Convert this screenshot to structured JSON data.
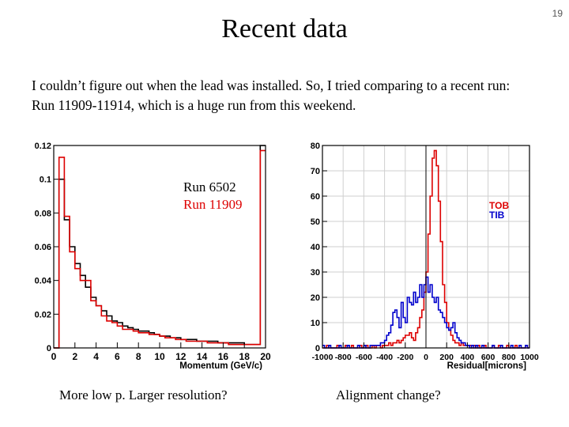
{
  "slide": {
    "title": "Recent data",
    "page_number": "19",
    "body_lines": [
      "I couldn’t figure out when the lead was installed. So, I tried comparing to a recent run:",
      "Run 11909-11914, which is a huge run from this weekend."
    ],
    "left_caption": "More low p.  Larger resolution?",
    "right_caption": "Alignment change?"
  },
  "chart_data": [
    {
      "type": "histogram",
      "title": "",
      "xlabel": "Momentum (GeV/c)",
      "ylabel": "",
      "xlim": [
        0,
        20
      ],
      "ylim": [
        0,
        0.12
      ],
      "x_ticks": [
        "0",
        "2",
        "4",
        "6",
        "8",
        "10",
        "12",
        "14",
        "16",
        "18",
        "20"
      ],
      "y_ticks": [
        "0",
        "0.02",
        "0.04",
        "0.06",
        "0.08",
        "0.1",
        "0.12"
      ],
      "bin_width": 0.5,
      "legend": [
        "Run 6502",
        "Run 11909"
      ],
      "series": [
        {
          "name": "Run 6502",
          "color": "#000000",
          "values": [
            0.0,
            0.1,
            0.076,
            0.06,
            0.05,
            0.043,
            0.036,
            0.03,
            0.025,
            0.022,
            0.019,
            0.016,
            0.015,
            0.013,
            0.012,
            0.011,
            0.01,
            0.01,
            0.009,
            0.008,
            0.007,
            0.007,
            0.006,
            0.006,
            0.005,
            0.005,
            0.005,
            0.004,
            0.004,
            0.004,
            0.004,
            0.003,
            0.003,
            0.003,
            0.003,
            0.003,
            0.002,
            0.002,
            0.002,
            0.12
          ]
        },
        {
          "name": "Run 11909",
          "color": "#dd0000",
          "values": [
            0.0,
            0.113,
            0.078,
            0.057,
            0.047,
            0.04,
            0.04,
            0.028,
            0.025,
            0.019,
            0.016,
            0.015,
            0.013,
            0.011,
            0.011,
            0.01,
            0.009,
            0.009,
            0.008,
            0.008,
            0.007,
            0.006,
            0.006,
            0.005,
            0.005,
            0.004,
            0.004,
            0.004,
            0.004,
            0.003,
            0.003,
            0.003,
            0.003,
            0.002,
            0.002,
            0.002,
            0.002,
            0.002,
            0.002,
            0.117
          ]
        }
      ]
    },
    {
      "type": "histogram",
      "title": "",
      "xlabel": "Residual[microns]",
      "ylabel": "",
      "xlim": [
        -1000,
        1000
      ],
      "ylim": [
        0,
        80
      ],
      "x_ticks": [
        "-1000",
        "-800",
        "-600",
        "-400",
        "-200",
        "0",
        "200",
        "400",
        "600",
        "800",
        "1000"
      ],
      "y_ticks": [
        "0",
        "10",
        "20",
        "30",
        "40",
        "50",
        "60",
        "70",
        "80"
      ],
      "bin_width": 20,
      "legend": [
        "TOB",
        "TIB"
      ],
      "series": [
        {
          "name": "TOB",
          "color": "#dd0000",
          "values": [
            0,
            0,
            1,
            0,
            0,
            0,
            0,
            1,
            0,
            0,
            0,
            1,
            0,
            0,
            1,
            0,
            0,
            0,
            1,
            0,
            0,
            1,
            0,
            0,
            1,
            0,
            1,
            1,
            0,
            1,
            1,
            1,
            2,
            1,
            2,
            2,
            3,
            2,
            3,
            4,
            5,
            5,
            6,
            4,
            3,
            6,
            8,
            12,
            15,
            22,
            30,
            45,
            60,
            75,
            78,
            72,
            58,
            42,
            25,
            18,
            10,
            7,
            5,
            3,
            2,
            2,
            1,
            2,
            1,
            1,
            1,
            1,
            0,
            1,
            0,
            1,
            0,
            0,
            1,
            0,
            0,
            0,
            1,
            0,
            0,
            1,
            0,
            0,
            0,
            1,
            0,
            0,
            0,
            1,
            0,
            0,
            0,
            0,
            1,
            0
          ]
        },
        {
          "name": "TIB",
          "color": "#0000cc",
          "values": [
            1,
            0,
            0,
            1,
            0,
            0,
            0,
            0,
            1,
            0,
            0,
            0,
            1,
            0,
            0,
            0,
            0,
            1,
            0,
            0,
            1,
            0,
            0,
            1,
            1,
            1,
            1,
            1,
            2,
            2,
            3,
            5,
            6,
            9,
            14,
            15,
            12,
            8,
            18,
            12,
            10,
            20,
            18,
            17,
            22,
            18,
            20,
            25,
            20,
            25,
            28,
            22,
            25,
            20,
            18,
            20,
            15,
            14,
            12,
            10,
            8,
            7,
            8,
            10,
            6,
            4,
            3,
            2,
            2,
            1,
            1,
            0,
            1,
            0,
            1,
            0,
            0,
            1,
            0,
            0,
            0,
            0,
            1,
            0,
            0,
            0,
            1,
            0,
            0,
            0,
            0,
            1,
            0,
            0,
            0,
            1,
            0,
            0,
            1,
            0
          ]
        }
      ]
    }
  ]
}
